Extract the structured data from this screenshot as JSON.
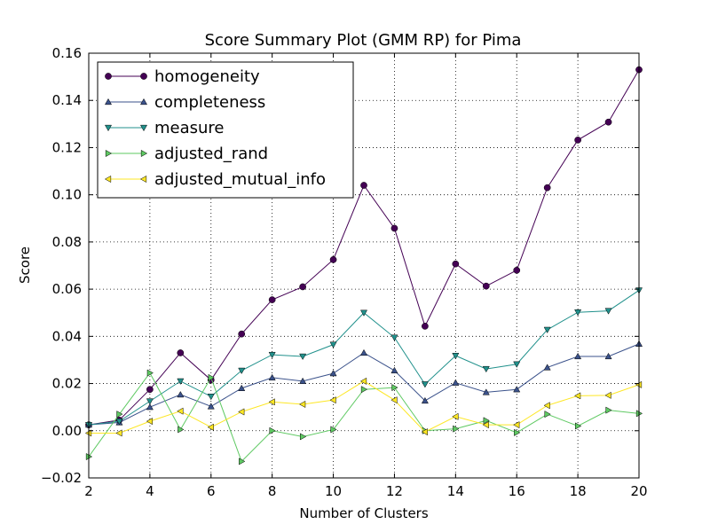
{
  "chart_data": {
    "type": "line",
    "title": "Score Summary Plot (GMM RP) for Pima",
    "xlabel": "Number of Clusters",
    "ylabel": "Score",
    "xlim": [
      2,
      20
    ],
    "ylim": [
      -0.02,
      0.16
    ],
    "xticks": [
      "2",
      "4",
      "6",
      "8",
      "10",
      "12",
      "14",
      "16",
      "18",
      "20"
    ],
    "yticks": [
      "−0.02",
      "0.00",
      "0.02",
      "0.04",
      "0.06",
      "0.08",
      "0.10",
      "0.12",
      "0.14",
      "0.16"
    ],
    "grid": true,
    "legend_position": "top-left",
    "x": [
      2,
      3,
      4,
      5,
      6,
      7,
      8,
      9,
      10,
      11,
      12,
      13,
      14,
      15,
      16,
      17,
      18,
      19,
      20
    ],
    "series": [
      {
        "name": "homogeneity",
        "color": "#440154",
        "marker": "circle",
        "values": [
          0.0025,
          0.0045,
          0.0175,
          0.033,
          0.0215,
          0.041,
          0.0555,
          0.061,
          0.0725,
          0.104,
          0.0858,
          0.0443,
          0.0707,
          0.0613,
          0.068,
          0.103,
          0.1232,
          0.1308,
          0.153
        ]
      },
      {
        "name": "completeness",
        "color": "#3b528b",
        "marker": "triangle-up",
        "values": [
          0.0025,
          0.0035,
          0.01,
          0.0153,
          0.0103,
          0.018,
          0.0225,
          0.021,
          0.0243,
          0.033,
          0.0255,
          0.0127,
          0.0203,
          0.0163,
          0.0175,
          0.0268,
          0.0315,
          0.0315,
          0.0368
        ]
      },
      {
        "name": "measure",
        "color": "#21918c",
        "marker": "triangle-down",
        "values": [
          0.0025,
          0.004,
          0.0125,
          0.021,
          0.0145,
          0.0255,
          0.0322,
          0.0315,
          0.0365,
          0.05,
          0.0395,
          0.0197,
          0.0318,
          0.0262,
          0.0282,
          0.0428,
          0.0502,
          0.0508,
          0.0595
        ]
      },
      {
        "name": "adjusted_rand",
        "color": "#5ec962",
        "marker": "triangle-right",
        "values": [
          -0.011,
          0.007,
          0.0245,
          0.0005,
          0.0225,
          -0.013,
          0.0,
          -0.0025,
          0.0005,
          0.0175,
          0.0183,
          0.0,
          0.0008,
          0.0043,
          -0.0008,
          0.007,
          0.002,
          0.0087,
          0.0073
        ]
      },
      {
        "name": "adjusted_mutual_info",
        "color": "#fde725",
        "marker": "triangle-left",
        "values": [
          -0.001,
          -0.001,
          0.004,
          0.0083,
          0.0015,
          0.008,
          0.0122,
          0.0112,
          0.013,
          0.021,
          0.013,
          -0.0005,
          0.006,
          0.0025,
          0.0025,
          0.0107,
          0.0148,
          0.015,
          0.0195
        ]
      }
    ]
  }
}
